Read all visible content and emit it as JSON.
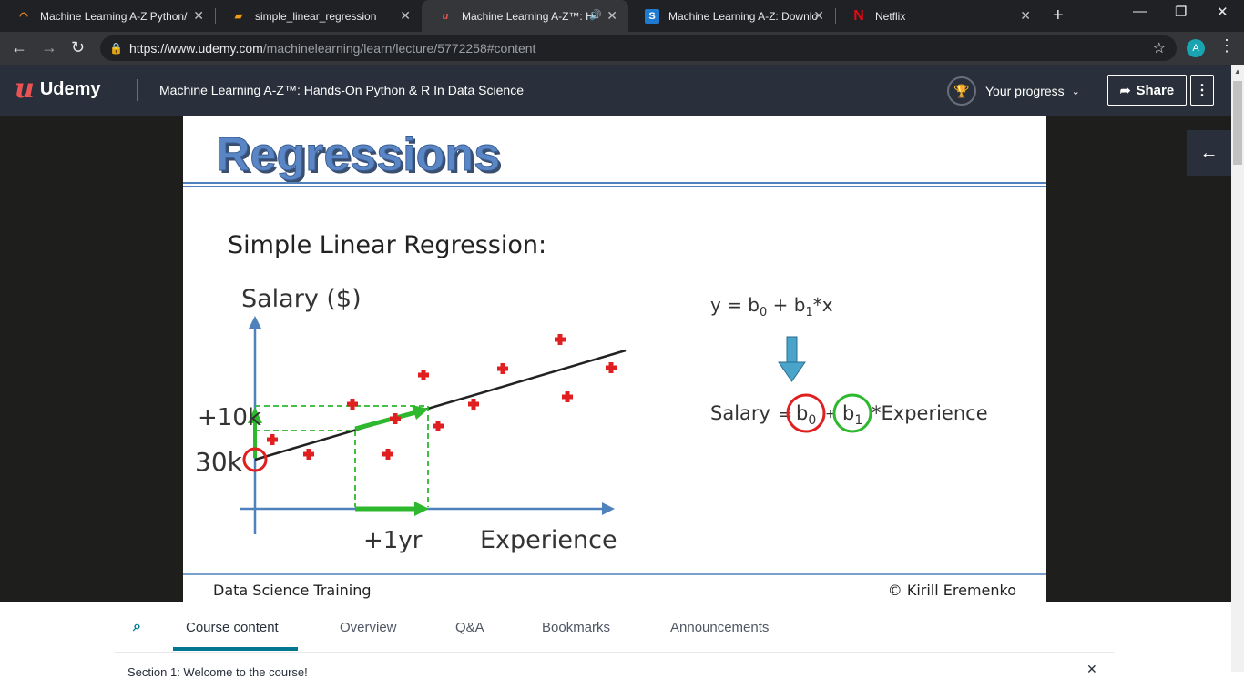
{
  "browser": {
    "tabs": [
      {
        "title": "Machine Learning A-Z Python/",
        "active": false
      },
      {
        "title": "simple_linear_regression",
        "active": false
      },
      {
        "title": "Machine Learning A-Z™: H",
        "active": true
      },
      {
        "title": "Machine Learning A-Z: Downlo",
        "active": false
      },
      {
        "title": "Netflix",
        "active": false
      }
    ],
    "url_domain": "https://www.udemy.com",
    "url_path": "/machinelearning/learn/lecture/5772258#content",
    "profile_initial": "A"
  },
  "header": {
    "brand": "Udemy",
    "course_title": "Machine Learning A-Z™: Hands-On Python & R In Data Science",
    "progress_label": "Your progress",
    "share_label": "Share"
  },
  "slide": {
    "title": "Regressions",
    "subtitle": "Simple Linear Regression:",
    "ylabel": "Salary ($)",
    "xlabel": "Experience",
    "label_10k": "+10k",
    "label_30k": "30k",
    "label_1yr": "+1yr",
    "equation": "y = b0 + b1*x",
    "formula_salary": "Salary",
    "formula_eq": "=",
    "formula_b0": "b0",
    "formula_plus": "+",
    "formula_b1": "b1",
    "formula_rest": "*Experience",
    "footer_left": "Data Science Training",
    "footer_right": "© Kirill Eremenko"
  },
  "bottom_tabs": {
    "items": [
      "Course content",
      "Overview",
      "Q&A",
      "Bookmarks",
      "Announcements"
    ],
    "active": "Course content",
    "next_line": "Section 1: Welcome to the course!"
  },
  "colors": {
    "udemy_dark": "#29303b",
    "udemy_red": "#ec5252",
    "accent_teal": "#007791",
    "slide_blue": "#4f81bd",
    "regression_green": "#2eb82e",
    "marker_red": "#e02020"
  }
}
